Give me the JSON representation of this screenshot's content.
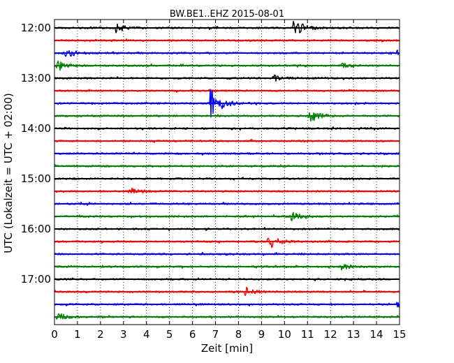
{
  "chart_data": {
    "type": "line",
    "title": "BW.BE1..EHZ 2015-08-01",
    "xlabel": "Zeit  [min]",
    "ylabel": "UTC (Lokalzeit = UTC + 02:00)",
    "xlim": [
      0,
      15
    ],
    "x_ticks": [
      "0",
      "1",
      "2",
      "3",
      "4",
      "5",
      "6",
      "7",
      "8",
      "9",
      "10",
      "11",
      "12",
      "13",
      "14",
      "15"
    ],
    "y_ticks": [
      "12:00",
      "13:00",
      "14:00",
      "15:00",
      "16:00",
      "17:00"
    ],
    "grid": "vertical dotted",
    "trace_colors": [
      "#000000",
      "#ff0000",
      "#0000ff",
      "#008000"
    ],
    "traces": [
      {
        "start": "12:00",
        "color": "#000000",
        "events": [
          {
            "minute": 2.7,
            "amplitude": 0.6
          },
          {
            "minute": 10.4,
            "amplitude": 1.4
          }
        ]
      },
      {
        "start": "12:15",
        "color": "#ff0000",
        "events": []
      },
      {
        "start": "12:30",
        "color": "#0000ff",
        "events": [
          {
            "minute": 0.5,
            "amplitude": 0.7
          },
          {
            "minute": 14.9,
            "amplitude": 0.4
          }
        ]
      },
      {
        "start": "12:45",
        "color": "#008000",
        "events": [
          {
            "minute": 0.1,
            "amplitude": 0.9
          },
          {
            "minute": 12.5,
            "amplitude": 0.3
          }
        ]
      },
      {
        "start": "13:00",
        "color": "#000000",
        "events": [
          {
            "minute": 9.5,
            "amplitude": 0.5
          }
        ]
      },
      {
        "start": "13:15",
        "color": "#ff0000",
        "events": []
      },
      {
        "start": "13:30",
        "color": "#0000ff",
        "events": [
          {
            "minute": 6.8,
            "amplitude": 3.0
          }
        ]
      },
      {
        "start": "13:45",
        "color": "#008000",
        "events": [
          {
            "minute": 11.1,
            "amplitude": 1.0
          }
        ]
      },
      {
        "start": "14:00",
        "color": "#000000",
        "events": []
      },
      {
        "start": "14:15",
        "color": "#ff0000",
        "events": []
      },
      {
        "start": "14:30",
        "color": "#0000ff",
        "events": []
      },
      {
        "start": "14:45",
        "color": "#008000",
        "events": []
      },
      {
        "start": "15:00",
        "color": "#000000",
        "events": []
      },
      {
        "start": "15:15",
        "color": "#ff0000",
        "events": [
          {
            "minute": 3.3,
            "amplitude": 0.5
          }
        ]
      },
      {
        "start": "15:30",
        "color": "#0000ff",
        "events": []
      },
      {
        "start": "15:45",
        "color": "#008000",
        "events": [
          {
            "minute": 10.3,
            "amplitude": 0.6
          }
        ]
      },
      {
        "start": "16:00",
        "color": "#000000",
        "events": []
      },
      {
        "start": "16:15",
        "color": "#ff0000",
        "events": [
          {
            "minute": 9.3,
            "amplitude": 1.1
          }
        ]
      },
      {
        "start": "16:30",
        "color": "#0000ff",
        "events": []
      },
      {
        "start": "16:45",
        "color": "#008000",
        "events": [
          {
            "minute": 12.5,
            "amplitude": 0.4
          }
        ]
      },
      {
        "start": "17:00",
        "color": "#000000",
        "events": []
      },
      {
        "start": "17:15",
        "color": "#ff0000",
        "events": [
          {
            "minute": 8.3,
            "amplitude": 0.7
          }
        ]
      },
      {
        "start": "17:30",
        "color": "#0000ff",
        "events": [
          {
            "minute": 14.9,
            "amplitude": 0.4
          }
        ]
      },
      {
        "start": "17:45",
        "color": "#008000",
        "events": [
          {
            "minute": 0.1,
            "amplitude": 0.6
          }
        ]
      }
    ]
  }
}
